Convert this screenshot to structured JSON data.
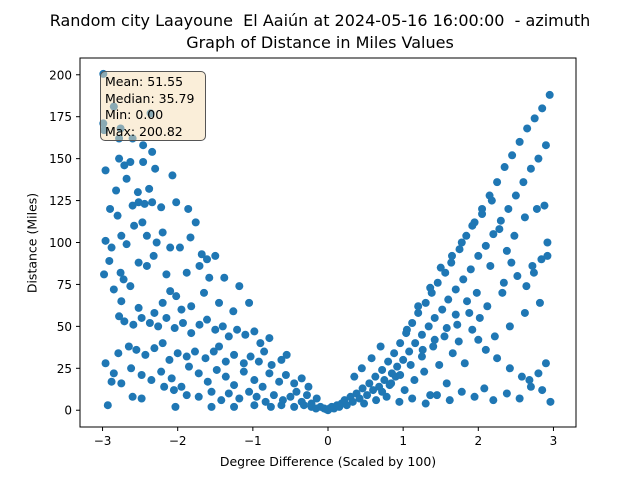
{
  "chart_data": {
    "type": "scatter",
    "title": "Random city Laayoune  El Aaiún at 2024-05-16 16:00:00  - azimuth",
    "subtitle": "Graph of Distance in Miles Values",
    "xlabel": "Degree Difference (Scaled by 100)",
    "ylabel": "Distance (Miles)",
    "xlim": [
      -3.3,
      3.3
    ],
    "ylim": [
      -10,
      210
    ],
    "xticks": [
      -3,
      -2,
      -1,
      0,
      1,
      2,
      3
    ],
    "yticks": [
      0,
      25,
      50,
      75,
      100,
      125,
      150,
      175,
      200
    ],
    "grid": false,
    "marker_color": "#1f77b4",
    "stats": {
      "mean": "Mean: 51.55",
      "median": "Median: 35.79",
      "min": "Min: 0.00",
      "max": "Max: 200.82"
    },
    "points": [
      [
        -2.99,
        200.5
      ],
      [
        -2.99,
        171
      ],
      [
        -2.98,
        167
      ],
      [
        -2.85,
        181
      ],
      [
        -2.76,
        168
      ],
      [
        -2.78,
        162
      ],
      [
        -2.6,
        162
      ],
      [
        -2.46,
        158
      ],
      [
        -2.34,
        154
      ],
      [
        -2.36,
        177
      ],
      [
        -2.78,
        150
      ],
      [
        -2.82,
        131
      ],
      [
        -2.96,
        143
      ],
      [
        -2.71,
        146
      ],
      [
        -2.63,
        148
      ],
      [
        -2.68,
        138
      ],
      [
        -2.46,
        148
      ],
      [
        -2.53,
        130
      ],
      [
        -2.38,
        132
      ],
      [
        -2.3,
        144
      ],
      [
        -2.07,
        140
      ],
      [
        -2.9,
        120
      ],
      [
        -2.8,
        116
      ],
      [
        -2.6,
        122
      ],
      [
        -2.52,
        124
      ],
      [
        -2.44,
        123
      ],
      [
        -2.34,
        124
      ],
      [
        -2.22,
        121
      ],
      [
        -2.02,
        124
      ],
      [
        -1.86,
        120
      ],
      [
        -1.76,
        112
      ],
      [
        -2.96,
        101
      ],
      [
        -2.88,
        97
      ],
      [
        -2.75,
        104
      ],
      [
        -2.68,
        99
      ],
      [
        -2.58,
        110
      ],
      [
        -2.47,
        112
      ],
      [
        -2.41,
        104
      ],
      [
        -2.28,
        100
      ],
      [
        -2.2,
        106
      ],
      [
        -2.1,
        97
      ],
      [
        -1.97,
        97
      ],
      [
        -1.83,
        103
      ],
      [
        -1.68,
        93
      ],
      [
        -1.61,
        90
      ],
      [
        -1.5,
        92
      ],
      [
        -2.98,
        81
      ],
      [
        -2.91,
        89
      ],
      [
        -2.76,
        82
      ],
      [
        -2.72,
        78
      ],
      [
        -2.52,
        88
      ],
      [
        -2.41,
        86
      ],
      [
        -2.32,
        92
      ],
      [
        -2.15,
        81
      ],
      [
        -1.88,
        82
      ],
      [
        -1.71,
        86
      ],
      [
        -1.58,
        79
      ],
      [
        -1.38,
        79
      ],
      [
        -1.18,
        74
      ],
      [
        -2.85,
        72
      ],
      [
        -2.75,
        65
      ],
      [
        -2.63,
        74
      ],
      [
        -2.52,
        61
      ],
      [
        -2.31,
        58
      ],
      [
        -2.2,
        64
      ],
      [
        -2.1,
        71
      ],
      [
        -2.02,
        68
      ],
      [
        -1.95,
        60
      ],
      [
        -1.82,
        62
      ],
      [
        -1.65,
        70
      ],
      [
        -1.45,
        64
      ],
      [
        -1.26,
        59
      ],
      [
        -1.05,
        64
      ],
      [
        -2.78,
        56
      ],
      [
        -2.71,
        53
      ],
      [
        -2.59,
        51
      ],
      [
        -2.48,
        55
      ],
      [
        -2.37,
        52
      ],
      [
        -2.26,
        50
      ],
      [
        -2.15,
        55
      ],
      [
        -2.04,
        49
      ],
      [
        -1.93,
        52
      ],
      [
        -1.82,
        46
      ],
      [
        -1.71,
        51
      ],
      [
        -1.61,
        54
      ],
      [
        -1.5,
        48
      ],
      [
        -1.4,
        50
      ],
      [
        -1.32,
        44
      ],
      [
        -1.21,
        48
      ],
      [
        -1.1,
        45
      ],
      [
        -0.98,
        47
      ],
      [
        -0.9,
        40
      ],
      [
        -0.78,
        43
      ],
      [
        -2.79,
        34
      ],
      [
        -2.65,
        38
      ],
      [
        -2.55,
        36
      ],
      [
        -2.43,
        33
      ],
      [
        -2.31,
        37
      ],
      [
        -2.2,
        40
      ],
      [
        -2.11,
        30
      ],
      [
        -2.0,
        34
      ],
      [
        -1.88,
        32
      ],
      [
        -1.77,
        35
      ],
      [
        -1.63,
        31
      ],
      [
        -1.52,
        35
      ],
      [
        -1.45,
        38
      ],
      [
        -1.36,
        29
      ],
      [
        -1.25,
        33
      ],
      [
        -1.12,
        28
      ],
      [
        -1.03,
        32
      ],
      [
        -0.92,
        29
      ],
      [
        -0.85,
        35
      ],
      [
        -0.75,
        27
      ],
      [
        -0.62,
        30
      ],
      [
        -0.55,
        33
      ],
      [
        -2.96,
        28
      ],
      [
        -2.85,
        22
      ],
      [
        -2.75,
        16
      ],
      [
        -2.62,
        25
      ],
      [
        -2.48,
        21
      ],
      [
        -2.35,
        18
      ],
      [
        -2.22,
        23
      ],
      [
        -2.08,
        19
      ],
      [
        -1.95,
        14
      ],
      [
        -1.85,
        26
      ],
      [
        -1.72,
        22
      ],
      [
        -1.6,
        17
      ],
      [
        -1.48,
        24
      ],
      [
        -1.36,
        20
      ],
      [
        -1.25,
        15
      ],
      [
        -1.12,
        23
      ],
      [
        -0.98,
        18
      ],
      [
        -0.87,
        14
      ],
      [
        -0.78,
        22
      ],
      [
        -0.65,
        17
      ],
      [
        -0.56,
        21
      ],
      [
        -0.45,
        16
      ],
      [
        -0.35,
        19
      ],
      [
        -0.26,
        14
      ],
      [
        -2.88,
        17
      ],
      [
        -2.6,
        8
      ],
      [
        -2.48,
        7
      ],
      [
        -2.18,
        14
      ],
      [
        -2.05,
        12
      ],
      [
        -1.88,
        9
      ],
      [
        -1.72,
        8
      ],
      [
        -1.55,
        11
      ],
      [
        -1.42,
        6
      ],
      [
        -1.32,
        10
      ],
      [
        -1.18,
        7
      ],
      [
        -1.05,
        11
      ],
      [
        -0.95,
        8
      ],
      [
        -0.83,
        5
      ],
      [
        -0.72,
        9
      ],
      [
        -0.6,
        6
      ],
      [
        -0.5,
        8
      ],
      [
        -0.42,
        11
      ],
      [
        -0.35,
        5
      ],
      [
        -0.28,
        9
      ],
      [
        -0.22,
        4
      ],
      [
        -0.15,
        7
      ],
      [
        -2.93,
        3
      ],
      [
        -2.03,
        2
      ],
      [
        -1.55,
        2
      ],
      [
        -1.25,
        2
      ],
      [
        -0.98,
        3
      ],
      [
        -0.76,
        2
      ],
      [
        -0.62,
        3
      ],
      [
        -0.45,
        2
      ],
      [
        -0.32,
        3
      ],
      [
        -0.22,
        2
      ],
      [
        -0.16,
        1
      ],
      [
        -0.1,
        2
      ],
      [
        -0.05,
        1
      ],
      [
        -0.02,
        0.5
      ],
      [
        0.0,
        0
      ],
      [
        0.02,
        1
      ],
      [
        0.05,
        2
      ],
      [
        0.08,
        1
      ],
      [
        0.12,
        3
      ],
      [
        0.15,
        2
      ],
      [
        0.18,
        4
      ],
      [
        0.22,
        6
      ],
      [
        0.25,
        3
      ],
      [
        0.3,
        8
      ],
      [
        0.33,
        5
      ],
      [
        0.38,
        10
      ],
      [
        0.42,
        7
      ],
      [
        0.46,
        13
      ],
      [
        0.52,
        9
      ],
      [
        0.55,
        16
      ],
      [
        0.6,
        12
      ],
      [
        0.63,
        20
      ],
      [
        0.68,
        14
      ],
      [
        0.72,
        24
      ],
      [
        0.75,
        18
      ],
      [
        0.8,
        29
      ],
      [
        0.85,
        22
      ],
      [
        0.88,
        34
      ],
      [
        0.92,
        26
      ],
      [
        0.96,
        40
      ],
      [
        1.0,
        30
      ],
      [
        1.04,
        46
      ],
      [
        1.08,
        35
      ],
      [
        1.12,
        52
      ],
      [
        1.16,
        40
      ],
      [
        1.2,
        58
      ],
      [
        1.25,
        45
      ],
      [
        1.3,
        64
      ],
      [
        1.34,
        50
      ],
      [
        1.38,
        70
      ],
      [
        1.42,
        55
      ],
      [
        1.46,
        76
      ],
      [
        1.52,
        60
      ],
      [
        1.56,
        82
      ],
      [
        1.6,
        66
      ],
      [
        1.64,
        88
      ],
      [
        1.7,
        72
      ],
      [
        1.75,
        96
      ],
      [
        1.8,
        78
      ],
      [
        1.84,
        104
      ],
      [
        1.9,
        84
      ],
      [
        1.95,
        112
      ],
      [
        2.0,
        92
      ],
      [
        2.05,
        120
      ],
      [
        2.1,
        98
      ],
      [
        2.15,
        128
      ],
      [
        2.2,
        105
      ],
      [
        2.25,
        136
      ],
      [
        2.3,
        113
      ],
      [
        2.35,
        145
      ],
      [
        2.4,
        120
      ],
      [
        2.45,
        152
      ],
      [
        2.5,
        128
      ],
      [
        2.55,
        160
      ],
      [
        2.6,
        136
      ],
      [
        2.65,
        168
      ],
      [
        2.7,
        144
      ],
      [
        2.75,
        174
      ],
      [
        2.8,
        150
      ],
      [
        2.85,
        180
      ],
      [
        2.9,
        158
      ],
      [
        2.95,
        188
      ],
      [
        0.35,
        20
      ],
      [
        0.45,
        25
      ],
      [
        0.58,
        31
      ],
      [
        0.7,
        38
      ],
      [
        0.82,
        15
      ],
      [
        0.9,
        20
      ],
      [
        1.02,
        12
      ],
      [
        1.15,
        18
      ],
      [
        1.28,
        23
      ],
      [
        1.36,
        9
      ],
      [
        1.48,
        27
      ],
      [
        1.58,
        16
      ],
      [
        1.66,
        34
      ],
      [
        1.74,
        41
      ],
      [
        1.82,
        28
      ],
      [
        1.92,
        48
      ],
      [
        2.02,
        55
      ],
      [
        2.12,
        62
      ],
      [
        2.22,
        44
      ],
      [
        2.32,
        70
      ],
      [
        2.42,
        50
      ],
      [
        2.52,
        80
      ],
      [
        2.62,
        58
      ],
      [
        2.72,
        86
      ],
      [
        2.82,
        64
      ],
      [
        2.92,
        92
      ],
      [
        0.48,
        4
      ],
      [
        0.64,
        6
      ],
      [
        0.78,
        8
      ],
      [
        0.95,
        5
      ],
      [
        1.12,
        7
      ],
      [
        1.3,
        4
      ],
      [
        1.45,
        9
      ],
      [
        1.62,
        6
      ],
      [
        1.78,
        11
      ],
      [
        1.95,
        8
      ],
      [
        2.08,
        13
      ],
      [
        2.2,
        6
      ],
      [
        2.38,
        10
      ],
      [
        2.55,
        7
      ],
      [
        2.7,
        14
      ],
      [
        2.85,
        12
      ],
      [
        2.96,
        5
      ],
      [
        1.05,
        48
      ],
      [
        1.25,
        32
      ],
      [
        1.4,
        38
      ],
      [
        1.55,
        44
      ],
      [
        1.72,
        51
      ],
      [
        1.88,
        58
      ],
      [
        2.0,
        42
      ],
      [
        2.1,
        36
      ],
      [
        2.25,
        31
      ],
      [
        2.42,
        25
      ],
      [
        2.58,
        20
      ],
      [
        2.68,
        18
      ],
      [
        2.8,
        22
      ],
      [
        2.9,
        28
      ],
      [
        1.2,
        62
      ],
      [
        1.36,
        73
      ],
      [
        1.5,
        85
      ],
      [
        1.65,
        92
      ],
      [
        1.78,
        100
      ],
      [
        1.92,
        110
      ],
      [
        2.05,
        117
      ],
      [
        2.18,
        125
      ],
      [
        2.28,
        108
      ],
      [
        2.38,
        95
      ],
      [
        2.48,
        104
      ],
      [
        2.62,
        115
      ],
      [
        2.78,
        120
      ],
      [
        2.88,
        122
      ],
      [
        2.92,
        100
      ],
      [
        2.84,
        90
      ],
      [
        2.74,
        82
      ],
      [
        2.64,
        74
      ],
      [
        2.44,
        88
      ],
      [
        2.34,
        76
      ],
      [
        2.16,
        86
      ],
      [
        1.98,
        70
      ],
      [
        1.85,
        65
      ],
      [
        1.7,
        57
      ],
      [
        1.58,
        49
      ],
      [
        1.42,
        42
      ],
      [
        1.26,
        36
      ],
      [
        1.1,
        27
      ],
      [
        0.96,
        21
      ],
      [
        0.84,
        16
      ],
      [
        0.72,
        11
      ]
    ]
  }
}
